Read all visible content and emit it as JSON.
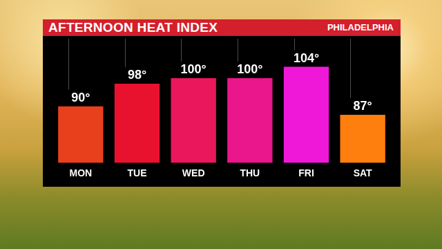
{
  "chart_data": {
    "type": "bar",
    "title": "AFTERNOON HEAT INDEX",
    "subtitle": "PHILADELPHIA",
    "categories": [
      "MON",
      "TUE",
      "WED",
      "THU",
      "FRI",
      "SAT"
    ],
    "values": [
      90,
      98,
      100,
      100,
      104,
      87
    ],
    "value_labels": [
      "90°",
      "98°",
      "100°",
      "100°",
      "104°",
      "87°"
    ],
    "colors": [
      "#e8401c",
      "#e8122e",
      "#eb175c",
      "#ea168c",
      "#f018d8",
      "#ff7f0e"
    ],
    "ylim": [
      70,
      112
    ],
    "grid": false,
    "data_labels": true,
    "tick_labels": "x"
  }
}
